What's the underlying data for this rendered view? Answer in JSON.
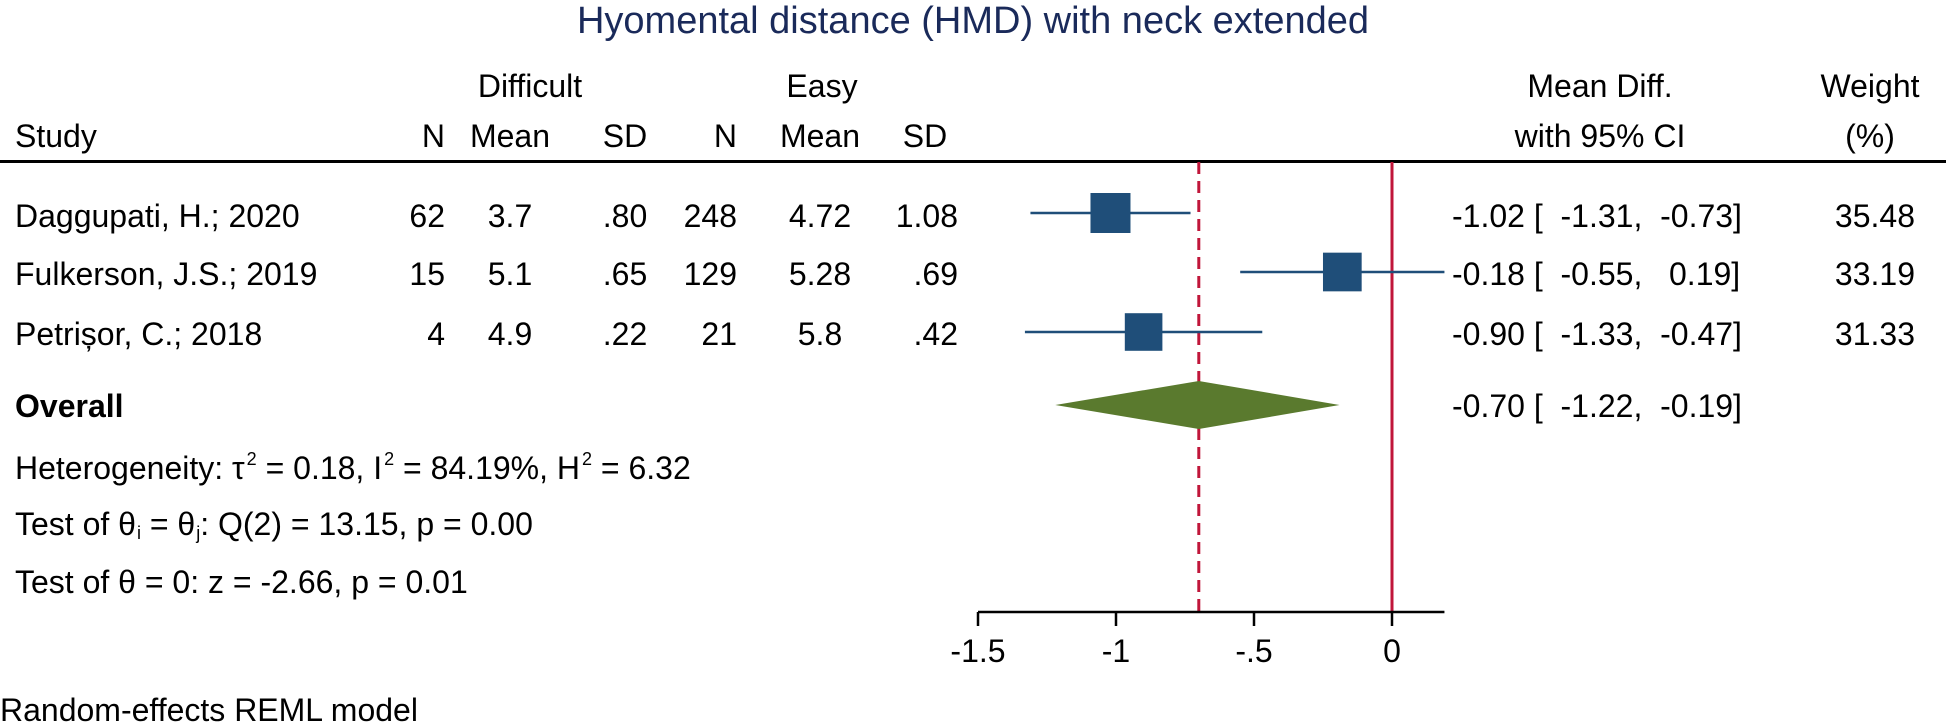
{
  "chart_data": {
    "type": "forest",
    "title": "Hyomental distance (HMD) with neck extended",
    "group_headers": {
      "difficult": "Difficult",
      "easy": "Easy"
    },
    "column_headers": {
      "study": "Study",
      "n_difficult": "N",
      "mean_difficult": "Mean",
      "sd_difficult": "SD",
      "n_easy": "N",
      "mean_easy": "Mean",
      "sd_easy": "SD",
      "effect_line1": "Mean Diff.",
      "effect_line2": "with 95% CI",
      "weight_line1": "Weight",
      "weight_line2": "(%)"
    },
    "studies": [
      {
        "name": "Daggupati, H.; 2020",
        "n1": "62",
        "mean1": "3.7",
        "sd1": ".80",
        "n2": "248",
        "mean2": "4.72",
        "sd2": "1.08",
        "md": -1.02,
        "lo": -1.31,
        "hi": -0.73,
        "ci_text": "-1.02 [  -1.31,  -0.73]",
        "weight": "35.48",
        "weight_value": 35.48
      },
      {
        "name": "Fulkerson, J.S.; 2019",
        "n1": "15",
        "mean1": "5.1",
        "sd1": ".65",
        "n2": "129",
        "mean2": "5.28",
        "sd2": ".69",
        "md": -0.18,
        "lo": -0.55,
        "hi": 0.19,
        "ci_text": "-0.18 [  -0.55,   0.19]",
        "weight": "33.19",
        "weight_value": 33.19
      },
      {
        "name": "Petrișor, C.; 2018",
        "n1": "4",
        "mean1": "4.9",
        "sd1": ".22",
        "n2": "21",
        "mean2": "5.8",
        "sd2": ".42",
        "md": -0.9,
        "lo": -1.33,
        "hi": -0.47,
        "ci_text": "-0.90 [  -1.33,  -0.47]",
        "weight": "31.33",
        "weight_value": 31.33
      }
    ],
    "overall": {
      "label": "Overall",
      "md": -0.7,
      "lo": -1.22,
      "hi": -0.19,
      "ci_text": "-0.70 [  -1.22,  -0.19]"
    },
    "stats": {
      "heterogeneity": {
        "prefix": "Heterogeneity: τ",
        "tau_sup": "2",
        "tau_rest": " = 0.18, I",
        "i_sup": "2",
        "i_rest": " = 84.19%, H",
        "h_sup": "2",
        "h_rest": " = 6.32"
      },
      "test_theta_i": {
        "prefix": "Test of θ",
        "sub_i": "i",
        "mid": " = θ",
        "sub_j": "j",
        "rest": ": Q(2) = 13.15, p = 0.00"
      },
      "test_theta": "Test of θ = 0: z = -2.66, p = 0.01"
    },
    "x_axis": {
      "ticks": [
        -1.5,
        -1,
        -0.5,
        0
      ],
      "tick_labels": [
        "-1.5",
        "-1",
        "-.5",
        "0"
      ],
      "range": [
        -1.5,
        0.19
      ]
    },
    "null_line": 0,
    "overall_line": -0.7,
    "footnote": "Random-effects REML model",
    "colors": {
      "marker": "#1f4e79",
      "diamond": "#5a7a2e",
      "null_line": "#c0163a",
      "overall_line": "#c0163a",
      "title": "#1a2a5a"
    }
  }
}
